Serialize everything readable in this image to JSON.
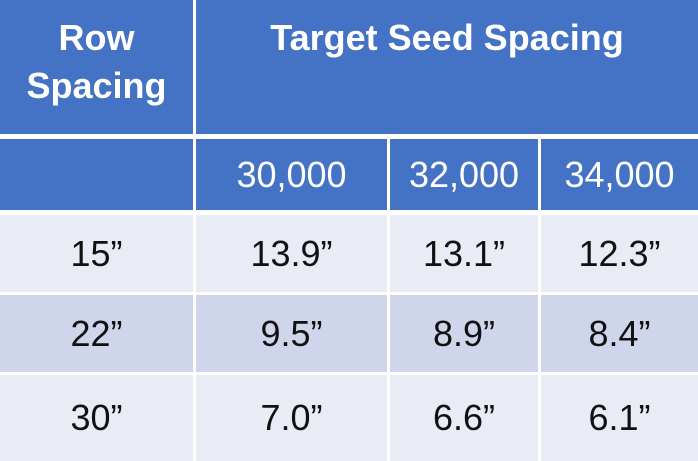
{
  "table": {
    "header_row_spacing": [
      "Row",
      "Spacing"
    ],
    "header_target": "Target Seed Spacing",
    "populations": [
      "30,000",
      "32,000",
      "34,000"
    ],
    "rows": [
      {
        "row_spacing": "15”",
        "values": [
          "13.9”",
          "13.1”",
          "12.3”"
        ]
      },
      {
        "row_spacing": "22”",
        "values": [
          "9.5”",
          "8.9”",
          "8.4”"
        ]
      },
      {
        "row_spacing": "30”",
        "values": [
          "7.0”",
          "6.6”",
          "6.1”"
        ]
      }
    ]
  },
  "colors": {
    "header_bg": "#4472c4",
    "row_light": "#e9ebf5",
    "row_dark": "#cfd5ea"
  }
}
